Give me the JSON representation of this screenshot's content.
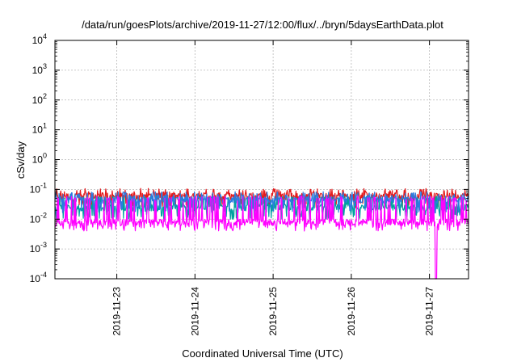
{
  "chart_data": {
    "type": "line",
    "title": "/data/run/goesPlots/archive/2019-11-27/12:00/flux/../bryn/5daysEarthData.plot",
    "xlabel": "Coordinated Universal Time (UTC)",
    "ylabel": "cSv/day",
    "yscale": "log",
    "ylim": [
      0.0001,
      10000
    ],
    "xlim": [
      "2019-11-22T05:00",
      "2019-11-27T12:00"
    ],
    "yticks": [
      {
        "base": "10",
        "exp": "-4"
      },
      {
        "base": "10",
        "exp": "-3"
      },
      {
        "base": "10",
        "exp": "-2"
      },
      {
        "base": "10",
        "exp": "-1"
      },
      {
        "base": "10",
        "exp": "0"
      },
      {
        "base": "10",
        "exp": "1"
      },
      {
        "base": "10",
        "exp": "2"
      },
      {
        "base": "10",
        "exp": "3"
      },
      {
        "base": "10",
        "exp": "4"
      }
    ],
    "xticks": [
      "2019-11-23",
      "2019-11-24",
      "2019-11-25",
      "2019-11-26",
      "2019-11-27"
    ],
    "grid": true,
    "series": [
      {
        "color": "#e41a1c",
        "baseline": 0.06,
        "spike": 0.09,
        "dip": 0.03
      },
      {
        "color": "#00a0a0",
        "baseline": 0.025,
        "spike": 0.05,
        "dip": 0.012
      },
      {
        "color": "#2b7be0",
        "baseline": 0.045,
        "spike": 0.07,
        "dip": 0.02
      },
      {
        "color": "#ff00ff",
        "baseline": 0.008,
        "spike": 0.05,
        "dip": 0.005,
        "dropout": {
          "x": "2019-11-27T02:00",
          "value": 0.0001
        }
      }
    ]
  }
}
